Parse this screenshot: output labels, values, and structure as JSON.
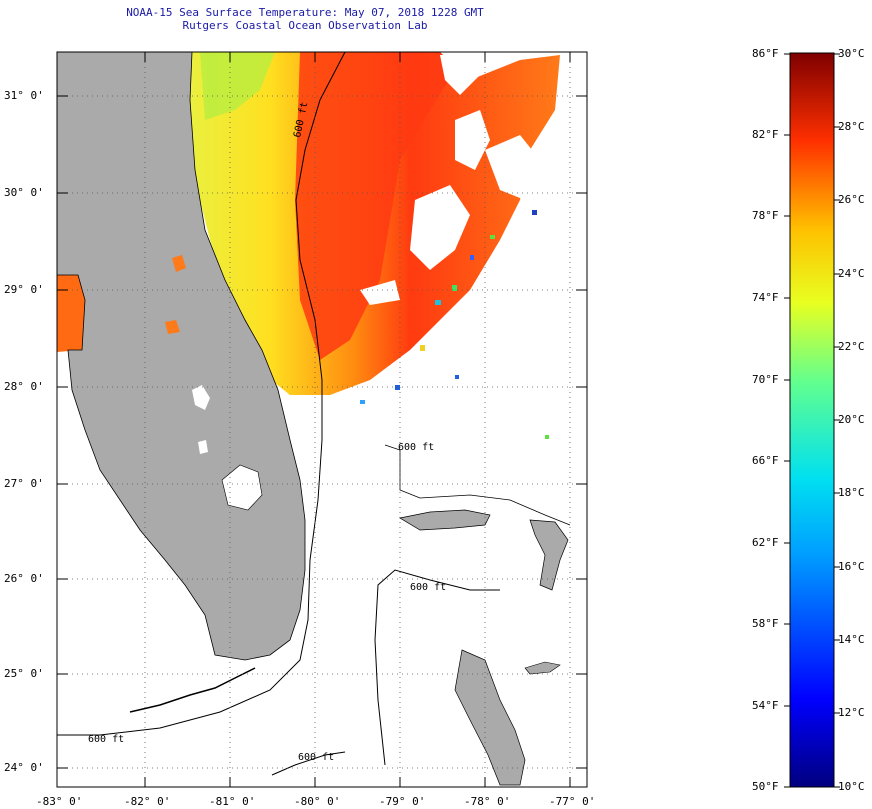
{
  "header": {
    "title_line1": "NOAA-15 Sea Surface Temperature:  May 07, 2018 1228 GMT",
    "title_line2": "Rutgers Coastal Ocean Observation Lab"
  },
  "map": {
    "lat_labels": [
      "31° 0'",
      "30° 0'",
      "29° 0'",
      "28° 0'",
      "27° 0'",
      "26° 0'",
      "25° 0'",
      "24° 0'"
    ],
    "lon_labels": [
      "-83° 0'",
      "-82° 0'",
      "-81° 0'",
      "-80° 0'",
      "-79° 0'",
      "-78° 0'",
      "-77° 0'"
    ],
    "contour_labels": [
      "600 ft",
      "600 ft",
      "600 ft",
      "600 ft",
      "600 ft"
    ],
    "colors": {
      "land": "#aaaaaa",
      "ocean_no_data": "#ffffff",
      "grid": "#555555"
    }
  },
  "colorbar": {
    "fahrenheit_labels": [
      "86°F",
      "82°F",
      "78°F",
      "74°F",
      "70°F",
      "66°F",
      "62°F",
      "58°F",
      "54°F",
      "50°F"
    ],
    "celsius_labels": [
      "30°C",
      "28°C",
      "26°C",
      "24°C",
      "22°C",
      "20°C",
      "18°C",
      "16°C",
      "14°C",
      "12°C",
      "10°C"
    ],
    "range_f": [
      50,
      86
    ],
    "range_c": [
      10,
      30
    ]
  }
}
